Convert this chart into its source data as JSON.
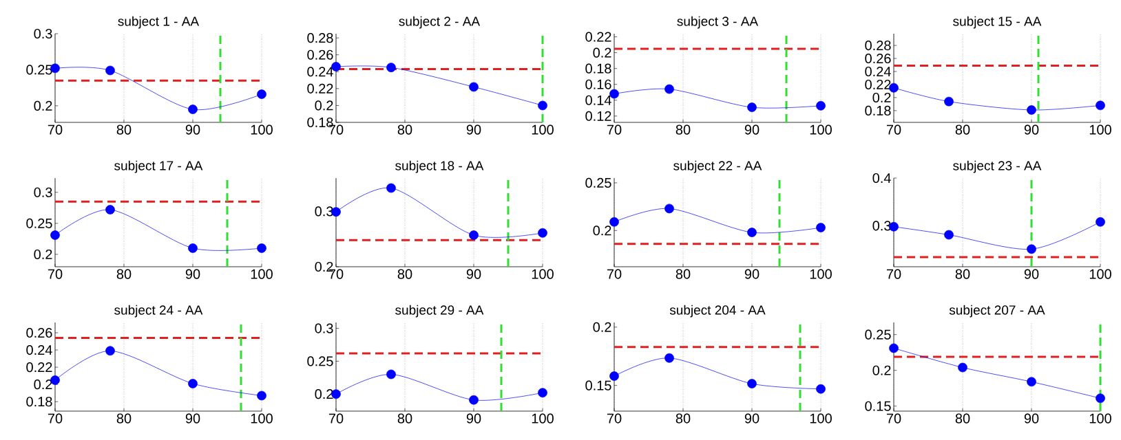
{
  "chart_data": [
    {
      "type": "line",
      "title": "subject 1 - AA",
      "x": [
        70,
        78,
        90,
        100
      ],
      "series": [
        {
          "color": "#0000ff",
          "values": [
            0.252,
            0.249,
            0.195,
            0.216
          ]
        }
      ],
      "marker": "circle",
      "grid": "x",
      "xlim": [
        70,
        100
      ],
      "xticks": [
        70,
        80,
        90,
        100
      ],
      "ylim": [
        0.177,
        0.3
      ],
      "yticks": [
        0.2,
        0.25,
        0.3
      ],
      "ref_lines": [
        {
          "axis": "y",
          "value": 0.235,
          "color": "#e02020",
          "line_style": "dashed"
        },
        {
          "axis": "x",
          "value": 94,
          "color": "#33dd33",
          "line_style": "dashed"
        }
      ]
    },
    {
      "type": "line",
      "title": "subject 2 - AA",
      "x": [
        70,
        78,
        90,
        100
      ],
      "series": [
        {
          "color": "#0000ff",
          "values": [
            0.246,
            0.245,
            0.222,
            0.2
          ]
        }
      ],
      "marker": "circle",
      "grid": "x",
      "xlim": [
        70,
        100
      ],
      "xticks": [
        70,
        80,
        90,
        100
      ],
      "ylim": [
        0.18,
        0.285
      ],
      "yticks": [
        0.18,
        0.2,
        0.22,
        0.24,
        0.26,
        0.28
      ],
      "ref_lines": [
        {
          "axis": "y",
          "value": 0.243,
          "color": "#e02020",
          "line_style": "dashed"
        },
        {
          "axis": "x",
          "value": 100,
          "color": "#33dd33",
          "line_style": "dashed"
        }
      ]
    },
    {
      "type": "line",
      "title": "subject 3 - AA",
      "x": [
        70,
        78,
        90,
        100
      ],
      "series": [
        {
          "color": "#0000ff",
          "values": [
            0.148,
            0.154,
            0.131,
            0.133
          ]
        }
      ],
      "marker": "circle",
      "grid": "x",
      "xlim": [
        70,
        100
      ],
      "xticks": [
        70,
        80,
        90,
        100
      ],
      "ylim": [
        0.112,
        0.224
      ],
      "yticks": [
        0.12,
        0.14,
        0.16,
        0.18,
        0.2,
        0.22
      ],
      "ref_lines": [
        {
          "axis": "y",
          "value": 0.205,
          "color": "#e02020",
          "line_style": "dashed"
        },
        {
          "axis": "x",
          "value": 95,
          "color": "#33dd33",
          "line_style": "dashed"
        }
      ]
    },
    {
      "type": "line",
      "title": "subject 15 - AA",
      "x": [
        70,
        78,
        90,
        100
      ],
      "series": [
        {
          "color": "#0000ff",
          "values": [
            0.215,
            0.194,
            0.181,
            0.188
          ]
        }
      ],
      "marker": "circle",
      "grid": "x",
      "xlim": [
        70,
        100
      ],
      "xticks": [
        70,
        80,
        90,
        100
      ],
      "ylim": [
        0.162,
        0.298
      ],
      "yticks": [
        0.18,
        0.2,
        0.22,
        0.24,
        0.26,
        0.28
      ],
      "ref_lines": [
        {
          "axis": "y",
          "value": 0.249,
          "color": "#e02020",
          "line_style": "dashed"
        },
        {
          "axis": "x",
          "value": 91,
          "color": "#33dd33",
          "line_style": "dashed"
        }
      ]
    },
    {
      "type": "line",
      "title": "subject 17 - AA",
      "x": [
        70,
        78,
        90,
        100
      ],
      "series": [
        {
          "color": "#0000ff",
          "values": [
            0.231,
            0.272,
            0.21,
            0.21
          ]
        }
      ],
      "marker": "circle",
      "grid": "x",
      "xlim": [
        70,
        100
      ],
      "xticks": [
        70,
        80,
        90,
        100
      ],
      "ylim": [
        0.18,
        0.323
      ],
      "yticks": [
        0.2,
        0.25,
        0.3
      ],
      "ref_lines": [
        {
          "axis": "y",
          "value": 0.285,
          "color": "#e02020",
          "line_style": "dashed"
        },
        {
          "axis": "x",
          "value": 95,
          "color": "#33dd33",
          "line_style": "dashed"
        }
      ]
    },
    {
      "type": "line",
      "title": "subject 18 - AA",
      "x": [
        70,
        78,
        90,
        100
      ],
      "series": [
        {
          "color": "#0000ff",
          "values": [
            0.299,
            0.342,
            0.257,
            0.261
          ]
        }
      ],
      "marker": "circle",
      "grid": "x",
      "xlim": [
        70,
        100
      ],
      "xticks": [
        70,
        80,
        90,
        100
      ],
      "ylim": [
        0.2,
        0.36
      ],
      "yticks": [
        0.2,
        0.3
      ],
      "ref_lines": [
        {
          "axis": "y",
          "value": 0.248,
          "color": "#e02020",
          "line_style": "dashed"
        },
        {
          "axis": "x",
          "value": 95,
          "color": "#33dd33",
          "line_style": "dashed"
        }
      ]
    },
    {
      "type": "line",
      "title": "subject 22 - AA",
      "x": [
        70,
        78,
        90,
        100
      ],
      "series": [
        {
          "color": "#0000ff",
          "values": [
            0.209,
            0.223,
            0.198,
            0.203
          ]
        }
      ],
      "marker": "circle",
      "grid": "x",
      "xlim": [
        70,
        100
      ],
      "xticks": [
        70,
        80,
        90,
        100
      ],
      "ylim": [
        0.162,
        0.255
      ],
      "yticks": [
        0.2,
        0.25
      ],
      "ref_lines": [
        {
          "axis": "y",
          "value": 0.186,
          "color": "#e02020",
          "line_style": "dashed"
        },
        {
          "axis": "x",
          "value": 94,
          "color": "#33dd33",
          "line_style": "dashed"
        }
      ]
    },
    {
      "type": "line",
      "title": "subject 23 - AA",
      "x": [
        70,
        78,
        90,
        100
      ],
      "series": [
        {
          "color": "#0000ff",
          "values": [
            0.298,
            0.281,
            0.251,
            0.308
          ]
        }
      ],
      "marker": "circle",
      "grid": "x",
      "xlim": [
        70,
        100
      ],
      "xticks": [
        70,
        80,
        90,
        100
      ],
      "ylim": [
        0.214,
        0.4
      ],
      "yticks": [
        0.3,
        0.4
      ],
      "ref_lines": [
        {
          "axis": "y",
          "value": 0.234,
          "color": "#e02020",
          "line_style": "dashed"
        },
        {
          "axis": "x",
          "value": 90,
          "color": "#33dd33",
          "line_style": "dashed"
        }
      ]
    },
    {
      "type": "line",
      "title": "subject 24 - AA",
      "x": [
        70,
        78,
        90,
        100
      ],
      "series": [
        {
          "color": "#0000ff",
          "values": [
            0.205,
            0.239,
            0.201,
            0.187
          ]
        }
      ],
      "marker": "circle",
      "grid": "x",
      "xlim": [
        70,
        100
      ],
      "xticks": [
        70,
        80,
        90,
        100
      ],
      "ylim": [
        0.169,
        0.272
      ],
      "yticks": [
        0.18,
        0.2,
        0.22,
        0.24,
        0.26
      ],
      "ref_lines": [
        {
          "axis": "y",
          "value": 0.254,
          "color": "#e02020",
          "line_style": "dashed"
        },
        {
          "axis": "x",
          "value": 97,
          "color": "#33dd33",
          "line_style": "dashed"
        }
      ]
    },
    {
      "type": "line",
      "title": "subject 29 - AA",
      "x": [
        70,
        78,
        90,
        100
      ],
      "series": [
        {
          "color": "#0000ff",
          "values": [
            0.2,
            0.23,
            0.191,
            0.202
          ]
        }
      ],
      "marker": "circle",
      "grid": "x",
      "xlim": [
        70,
        100
      ],
      "xticks": [
        70,
        80,
        90,
        100
      ],
      "ylim": [
        0.174,
        0.309
      ],
      "yticks": [
        0.2,
        0.25,
        0.3
      ],
      "ref_lines": [
        {
          "axis": "y",
          "value": 0.262,
          "color": "#e02020",
          "line_style": "dashed"
        },
        {
          "axis": "x",
          "value": 94,
          "color": "#33dd33",
          "line_style": "dashed"
        }
      ]
    },
    {
      "type": "line",
      "title": "subject 204 - AA",
      "x": [
        70,
        78,
        90,
        100
      ],
      "series": [
        {
          "color": "#0000ff",
          "values": [
            0.158,
            0.1735,
            0.1515,
            0.147
          ]
        }
      ],
      "marker": "circle",
      "grid": "x",
      "xlim": [
        70,
        100
      ],
      "xticks": [
        70,
        80,
        90,
        100
      ],
      "ylim": [
        0.128,
        0.204
      ],
      "yticks": [
        0.15,
        0.2
      ],
      "ref_lines": [
        {
          "axis": "y",
          "value": 0.183,
          "color": "#e02020",
          "line_style": "dashed"
        },
        {
          "axis": "x",
          "value": 97,
          "color": "#33dd33",
          "line_style": "dashed"
        }
      ]
    },
    {
      "type": "line",
      "title": "subject 207 - AA",
      "x": [
        70,
        80,
        90,
        100
      ],
      "series": [
        {
          "color": "#0000ff",
          "values": [
            0.231,
            0.204,
            0.184,
            0.161
          ]
        }
      ],
      "marker": "circle",
      "grid": "x",
      "xlim": [
        70,
        100
      ],
      "xticks": [
        70,
        80,
        90,
        100
      ],
      "ylim": [
        0.143,
        0.267
      ],
      "yticks": [
        0.15,
        0.2,
        0.25
      ],
      "ref_lines": [
        {
          "axis": "y",
          "value": 0.219,
          "color": "#e02020",
          "line_style": "dashed"
        },
        {
          "axis": "x",
          "value": 100,
          "color": "#33dd33",
          "line_style": "dashed"
        }
      ]
    }
  ]
}
